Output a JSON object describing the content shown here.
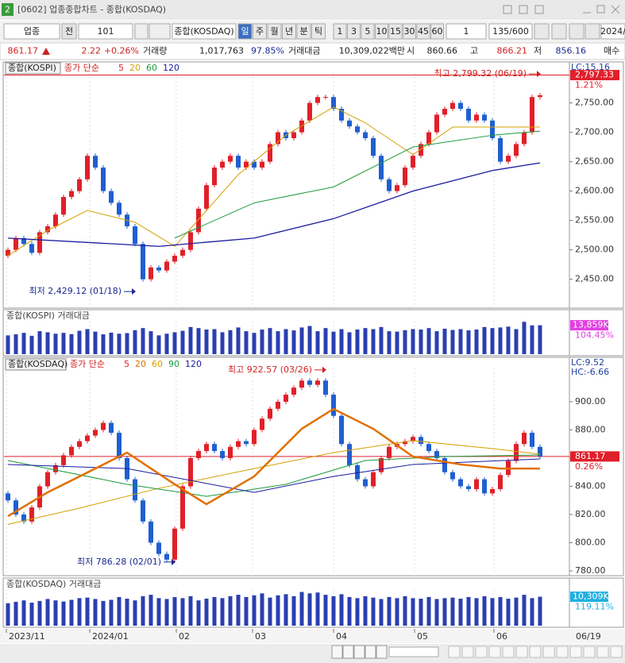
{
  "window": {
    "number": "2",
    "title": "[0602] 업종종합차트 - 종합(KOSDAQ)"
  },
  "toolbar": {
    "market": "업종",
    "period_flag": "전",
    "code": "101",
    "name": "종합(KOSDAQ)",
    "periods": [
      "일",
      "주",
      "월",
      "년",
      "분",
      "틱"
    ],
    "intervals": [
      "1",
      "3",
      "5",
      "10",
      "15",
      "30",
      "45",
      "60"
    ],
    "count": "1",
    "range": "135/600",
    "date": "2024/"
  },
  "quote": {
    "price": "861.17",
    "change": "2.22",
    "change_rate": "+0.26%",
    "volume_label": "거래량",
    "volume": "1,017,763",
    "volume_ratio": "97.85%",
    "amount_label": "거래대금",
    "amount": "10,309,022백만",
    "open_label": "시",
    "open": "860.66",
    "high_label": "고",
    "high": "866.21",
    "low_label": "저",
    "low": "856.16",
    "buy": "매수"
  },
  "charts": [
    {
      "type": "candlestick",
      "name": "종합(KOSPI)",
      "ma_title": "종가 단순",
      "ma_legend": [
        {
          "name": "5",
          "color": "#e0202a"
        },
        {
          "name": "20",
          "color": "#d4a000"
        },
        {
          "name": "60",
          "color": "#1a9a3a"
        },
        {
          "name": "120",
          "color": "#1a1aa0"
        }
      ],
      "first_open": 2490,
      "closes": [
        2500,
        2520,
        2510,
        2495,
        2530,
        2540,
        2560,
        2590,
        2600,
        2620,
        2660,
        2640,
        2600,
        2580,
        2560,
        2540,
        2510,
        2450,
        2470,
        2465,
        2480,
        2490,
        2500,
        2530,
        2570,
        2610,
        2640,
        2650,
        2660,
        2640,
        2650,
        2640,
        2650,
        2680,
        2700,
        2690,
        2700,
        2720,
        2750,
        2760,
        2760,
        2740,
        2720,
        2710,
        2700,
        2690,
        2660,
        2620,
        2600,
        2610,
        2640,
        2660,
        2680,
        2700,
        2730,
        2740,
        2750,
        2740,
        2720,
        2730,
        2720,
        2690,
        2650,
        2660,
        2680,
        2700,
        2760,
        2763
      ],
      "up_color": "#e0202a",
      "down_color": "#1f5fd0",
      "ylim": [
        2405,
        2817
      ],
      "yticks": [
        {
          "value": 2750,
          "label": "2,750.00"
        },
        {
          "value": 2700,
          "label": "2,700.00"
        },
        {
          "value": 2650,
          "label": "2,650.00"
        },
        {
          "value": 2600,
          "label": "2,600.00"
        },
        {
          "value": 2550,
          "label": "2,550.00"
        },
        {
          "value": 2500,
          "label": "2,500.00"
        },
        {
          "value": 2450,
          "label": "2,450.00"
        }
      ],
      "lc": "LC:15.16",
      "price_line": {
        "value": 2797.33,
        "label": "2,797.33"
      },
      "change": "1.21%",
      "moving_averages": [
        {
          "name": "20",
          "color": "#d4a000",
          "width": 1,
          "x": [
            0,
            5,
            10,
            16,
            21,
            29,
            35,
            41,
            45,
            51,
            56,
            61,
            67
          ],
          "values": [
            2490,
            2533,
            2567,
            2547,
            2506,
            2628,
            2695,
            2743,
            2716,
            2662,
            2709,
            2709,
            2709
          ]
        },
        {
          "name": "60",
          "color": "#1a9a3a",
          "width": 1,
          "x": [
            21,
            31,
            41,
            51,
            61,
            67
          ],
          "values": [
            2520,
            2580,
            2607,
            2675,
            2695,
            2702
          ]
        },
        {
          "name": "120",
          "color": "#1a1aa0",
          "width": 1.3,
          "x": [
            0,
            19,
            31,
            41,
            51,
            61,
            67
          ],
          "values": [
            2520,
            2506,
            2520,
            2553,
            2600,
            2635,
            2648
          ]
        }
      ],
      "high_note": {
        "text": "최고 2,799.32 (06/19)",
        "x": 67,
        "value": 2799.32,
        "color": "#d02020"
      },
      "low_note": {
        "text": "최저 2,429.12 (01/18)",
        "x": 16,
        "value": 2429.12,
        "color": "#1a2a90"
      },
      "volume": {
        "title": "종합(KOSPI) 거래대금",
        "color": "#2a3fb0",
        "ylim": [
          0,
          16000
        ],
        "values": [
          9000,
          9500,
          10200,
          8800,
          11000,
          10500,
          9800,
          10200,
          9600,
          11200,
          12000,
          10800,
          9500,
          10300,
          9800,
          10100,
          11500,
          12500,
          11000,
          9000,
          9800,
          10500,
          11200,
          13000,
          12500,
          11800,
          12000,
          10500,
          11500,
          12800,
          11000,
          10200,
          11800,
          12500,
          11000,
          12000,
          11400,
          12800,
          13500,
          11000,
          12500,
          10800,
          12000,
          10500,
          11800,
          12500,
          12000,
          13000,
          11000,
          10800,
          11500,
          12000,
          11800,
          12500,
          11000,
          12200,
          11600,
          12000,
          11400,
          11800,
          13000,
          12500,
          12800,
          13200,
          12000,
          15500,
          13800,
          13859
        ],
        "last_label": "13,859K",
        "ratio": "104.45%",
        "label_color": "#e040e0"
      }
    },
    {
      "type": "candlestick",
      "name": "종합(KOSDAQ)",
      "ma_title": "종가 단순",
      "ma_legend": [
        {
          "name": "5",
          "color": "#e0202a"
        },
        {
          "name": "20",
          "color": "#e07000"
        },
        {
          "name": "60",
          "color": "#d4a000"
        },
        {
          "name": "90",
          "color": "#1a9a3a"
        },
        {
          "name": "120",
          "color": "#1a1aa0"
        }
      ],
      "first_open": 835,
      "closes": [
        830,
        820,
        815,
        825,
        840,
        850,
        855,
        862,
        868,
        872,
        876,
        880,
        885,
        878,
        860,
        845,
        830,
        815,
        800,
        792,
        788,
        810,
        840,
        860,
        865,
        870,
        865,
        860,
        868,
        872,
        870,
        880,
        888,
        895,
        900,
        905,
        910,
        915,
        912,
        915,
        905,
        890,
        870,
        855,
        845,
        840,
        850,
        860,
        868,
        870,
        872,
        875,
        870,
        865,
        860,
        850,
        845,
        840,
        838,
        845,
        835,
        838,
        848,
        858,
        870,
        878,
        868,
        861.17
      ],
      "up_color": "#e0202a",
      "down_color": "#1f5fd0",
      "ylim": [
        776.6,
        928.7
      ],
      "yticks": [
        {
          "value": 900,
          "label": "900.00"
        },
        {
          "value": 880,
          "label": "880.00"
        },
        {
          "value": 860,
          "label": "860.00"
        },
        {
          "value": 840,
          "label": "840.00"
        },
        {
          "value": 820,
          "label": "820.00"
        },
        {
          "value": 800,
          "label": "800.00"
        },
        {
          "value": 780,
          "label": "780.00"
        }
      ],
      "lc": "LC:9.52",
      "hc": "HC:-6.66",
      "price_line": {
        "value": 861.17,
        "label": "861.17"
      },
      "change": "0.26%",
      "moving_averages": [
        {
          "name": "60",
          "color": "#d4a000",
          "width": 1,
          "x": [
            0,
            9,
            19,
            31,
            41,
            51,
            61,
            67
          ],
          "values": [
            813,
            824.5,
            838.6,
            852.6,
            863.9,
            872.4,
            866.7,
            862.8
          ]
        },
        {
          "name": "90",
          "color": "#1a9a3a",
          "width": 1,
          "x": [
            0,
            15,
            25,
            35,
            45,
            55,
            67
          ],
          "values": [
            858.3,
            841.4,
            832.9,
            841.4,
            858.3,
            861.1,
            862.2
          ]
        },
        {
          "name": "120",
          "color": "#1a1aa0",
          "width": 1,
          "x": [
            0,
            15,
            31,
            41,
            51,
            67
          ],
          "values": [
            855.5,
            852.6,
            835.7,
            847,
            855.5,
            859.4
          ]
        },
        {
          "name": "20",
          "color": "#e07000",
          "width": 2.5,
          "x": [
            0,
            5,
            15,
            21,
            25,
            31,
            37,
            41,
            46,
            51,
            57,
            62,
            67
          ],
          "values": [
            818.8,
            835.7,
            863.9,
            841.4,
            827.3,
            847,
            880.8,
            894.9,
            880.8,
            861.1,
            855.5,
            852.6,
            852.6
          ]
        }
      ],
      "high_note": {
        "text": "최고 922.57 (03/26)",
        "x": 40,
        "value": 922.57,
        "color": "#d02020"
      },
      "low_note": {
        "text": "최저 786.28 (02/01)",
        "x": 21,
        "value": 786.28,
        "color": "#1a2a90"
      },
      "volume": {
        "title": "종합(KOSDAQ) 거래대금",
        "color": "#2a3fb0",
        "ylim": [
          0,
          13000
        ],
        "values": [
          8000,
          8500,
          9000,
          8200,
          8800,
          9500,
          9000,
          8600,
          9200,
          9800,
          10000,
          9500,
          8800,
          9200,
          10200,
          9600,
          9000,
          10500,
          11000,
          9800,
          9500,
          10200,
          9800,
          10500,
          9000,
          9600,
          10200,
          9800,
          10500,
          11000,
          10200,
          10800,
          11500,
          10000,
          10800,
          11200,
          10500,
          12000,
          11500,
          11800,
          11000,
          10500,
          11200,
          10200,
          9800,
          10500,
          10000,
          9500,
          10200,
          9800,
          10500,
          9800,
          9600,
          10200,
          9500,
          9800,
          10000,
          9600,
          10200,
          9800,
          10500,
          9800,
          10200,
          9600,
          10000,
          11000,
          9800,
          10309
        ],
        "last_label": "10,309K",
        "ratio": "119.11%",
        "label_color": "#20b0e0"
      }
    }
  ],
  "x_axis": {
    "ticks": [
      {
        "value": -0.2,
        "label": "2023/11"
      },
      {
        "value": 10.3,
        "label": "2024/01"
      },
      {
        "value": 21.2,
        "label": "02"
      },
      {
        "value": 30.8,
        "label": "03"
      },
      {
        "value": 41,
        "label": "04"
      },
      {
        "value": 51.2,
        "label": "05"
      },
      {
        "value": 61.2,
        "label": "06"
      }
    ],
    "cursor": "06/19"
  }
}
